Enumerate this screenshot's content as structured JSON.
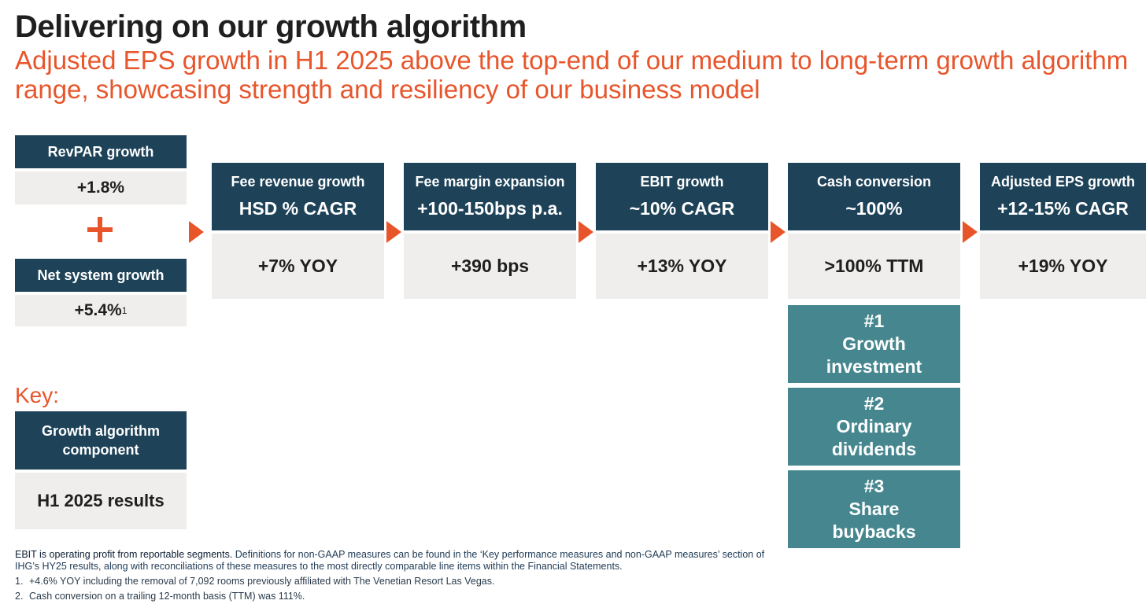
{
  "header": {
    "title": "Delivering on our growth algorithm",
    "subtitle": "Adjusted EPS growth  in H1 2025 above the top-end of our medium to long-term growth algorithm range, showcasing strength and resiliency of our business model"
  },
  "inputs": {
    "revpar": {
      "label": "RevPAR  growth",
      "value": "+1.8%"
    },
    "net_system": {
      "label": "Net system growth",
      "value": "+5.4%",
      "footnote_ref": "1"
    }
  },
  "components": [
    {
      "label": "Fee revenue growth",
      "target": "HSD % CAGR",
      "result": "+7% YOY"
    },
    {
      "label": "Fee margin expansion",
      "target": "+100-150bps p.a.",
      "result": "+390 bps"
    },
    {
      "label": "EBIT growth",
      "target": "~10% CAGR",
      "result": "+13% YOY"
    },
    {
      "label": "Cash conversion",
      "target": "~100%",
      "result": ">100% TTM"
    },
    {
      "label": "Adjusted EPS growth",
      "target": "+12-15% CAGR",
      "result": "+19% YOY"
    }
  ],
  "priorities": [
    {
      "rank": "#1",
      "line1": "Growth",
      "line2": "investment"
    },
    {
      "rank": "#2",
      "line1": "Ordinary",
      "line2": "dividends"
    },
    {
      "rank": "#3",
      "line1": "Share",
      "line2": "buybacks"
    }
  ],
  "key": {
    "title": "Key:",
    "component_line1": "Growth algorithm",
    "component_line2": "component",
    "results_label": "H1 2025 results"
  },
  "footnotes": {
    "intro_bold": "EBIT is operating profit from reportable segments.",
    "intro_rest": " Definitions for non-GAAP measures can be found in the ‘Key performance measures and non-GAAP measures’ section of IHG’s HY25 results, along with reconciliations of these measures to the most directly comparable line items within the Financial Statements.",
    "items": [
      {
        "num": "1.",
        "text": "+4.6% YOY including the removal of 7,092 rooms previously affiliated with The Venetian Resort Las Vegas."
      },
      {
        "num": "2.",
        "text": "Cash conversion on a trailing 12-month basis (TTM) was 111%."
      }
    ]
  },
  "colors": {
    "navy": "#1e4359",
    "teal": "#46878f",
    "accent": "#e8552b",
    "light_gray": "#efeeec"
  }
}
